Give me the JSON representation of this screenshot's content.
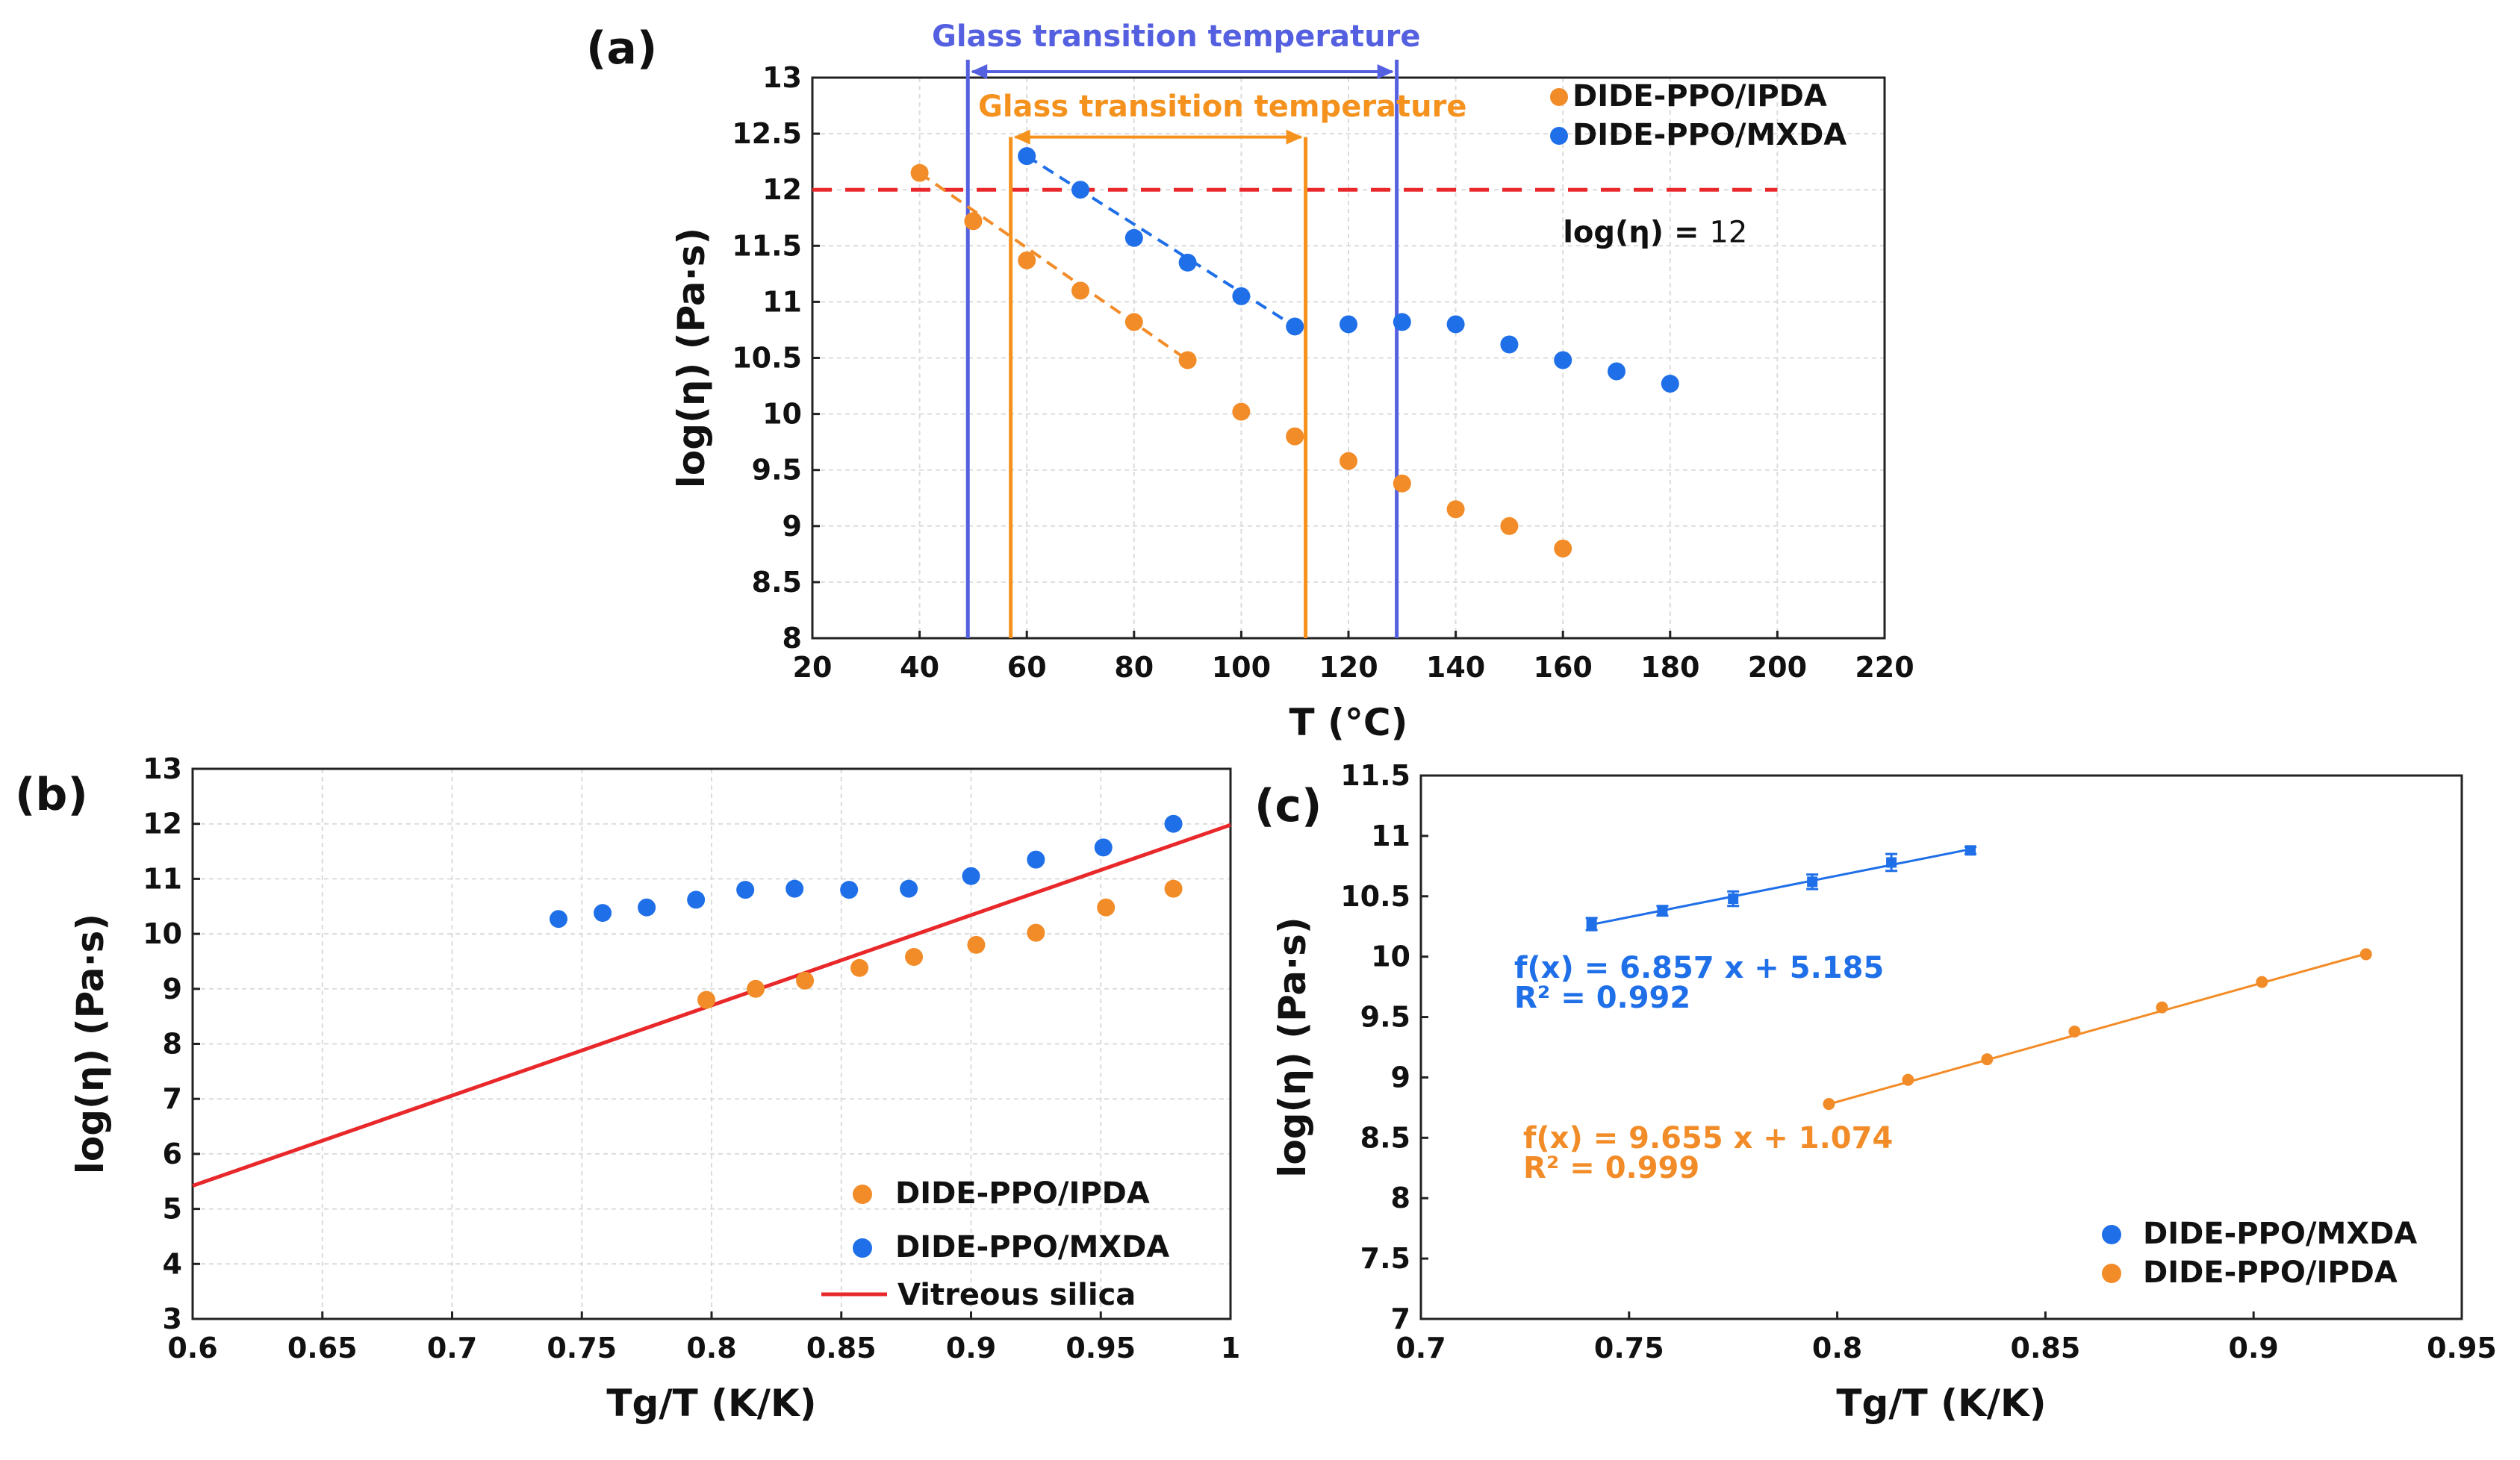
{
  "colors": {
    "orange": "#f28c28",
    "blue": "#1f6fe8",
    "red": "#e8282a",
    "tgblue": "#5560e0",
    "tgorange": "#f5921e"
  },
  "chart_data": [
    {
      "panel": "(a)",
      "type": "scatter",
      "xlabel": "T (°C)",
      "ylabel": "log(η) (Pa·s)",
      "xlim": [
        20,
        220
      ],
      "ylim": [
        8,
        13
      ],
      "xticks": [
        "20",
        "40",
        "60",
        "80",
        "100",
        "120",
        "140",
        "160",
        "180",
        "200",
        "220"
      ],
      "yticks": [
        "8",
        "8.5",
        "9",
        "9.5",
        "10",
        "10.5",
        "11",
        "11.5",
        "12",
        "12.5",
        "13"
      ],
      "grid": true,
      "legend": "top-right",
      "series": [
        {
          "name": "DIDE-PPO/IPDA",
          "color": "orange",
          "x": [
            40,
            50,
            60,
            70,
            80,
            90,
            100,
            110,
            120,
            130,
            140,
            150,
            160
          ],
          "y": [
            12.15,
            11.72,
            11.37,
            11.1,
            10.82,
            10.48,
            10.02,
            9.8,
            9.58,
            9.38,
            9.15,
            9.0,
            8.8
          ]
        },
        {
          "name": "DIDE-PPO/MXDA",
          "color": "blue",
          "x": [
            60,
            70,
            80,
            90,
            100,
            110,
            120,
            130,
            140,
            150,
            160,
            170,
            180
          ],
          "y": [
            12.3,
            12.0,
            11.57,
            11.35,
            11.05,
            10.78,
            10.8,
            10.82,
            10.8,
            10.62,
            10.48,
            10.38,
            10.27
          ]
        }
      ],
      "trend_lines": [
        {
          "series": "DIDE-PPO/IPDA",
          "x": [
            40,
            90
          ],
          "y": [
            12.15,
            10.48
          ],
          "style": "dashed"
        },
        {
          "series": "DIDE-PPO/MXDA",
          "x": [
            60,
            110
          ],
          "y": [
            12.3,
            10.78
          ],
          "style": "dashed"
        }
      ],
      "reference_line": {
        "y": 12,
        "x_range": [
          20,
          200
        ],
        "label_prefix": "log(η) =",
        "label_value": "12"
      },
      "tg_ranges": [
        {
          "label": "Glass transition temperature",
          "color": "tgblue",
          "x": [
            49,
            129
          ]
        },
        {
          "label": "Glass transition temperature",
          "color": "tgorange",
          "x": [
            57,
            112
          ]
        }
      ]
    },
    {
      "panel": "(b)",
      "type": "scatter",
      "xlabel": "Tg/T (K/K)",
      "ylabel": "log(η) (Pa·s)",
      "xlim": [
        0.6,
        1.0
      ],
      "ylim": [
        3,
        13
      ],
      "xticks": [
        "0.6",
        "0.65",
        "0.7",
        "0.75",
        "0.8",
        "0.85",
        "0.9",
        "0.95",
        "1"
      ],
      "yticks": [
        "3",
        "4",
        "5",
        "6",
        "7",
        "8",
        "9",
        "10",
        "11",
        "12",
        "13"
      ],
      "grid": true,
      "legend": "bottom-right",
      "series": [
        {
          "name": "DIDE-PPO/IPDA",
          "color": "orange",
          "x": [
            0.798,
            0.817,
            0.836,
            0.857,
            0.878,
            0.902,
            0.925,
            0.952,
            0.978
          ],
          "y": [
            8.8,
            9.0,
            9.15,
            9.38,
            9.58,
            9.8,
            10.02,
            10.48,
            10.82
          ]
        },
        {
          "name": "DIDE-PPO/MXDA",
          "color": "blue",
          "x": [
            0.741,
            0.758,
            0.775,
            0.794,
            0.813,
            0.832,
            0.853,
            0.876,
            0.9,
            0.925,
            0.951,
            0.978
          ],
          "y": [
            10.27,
            10.38,
            10.48,
            10.62,
            10.8,
            10.82,
            10.8,
            10.82,
            11.05,
            11.35,
            11.57,
            12.0
          ]
        }
      ],
      "lines": [
        {
          "name": "Vitreous silica",
          "color": "red",
          "x": [
            0.6,
            1.0
          ],
          "y": [
            5.42,
            11.98
          ]
        }
      ]
    },
    {
      "panel": "(c)",
      "type": "scatter",
      "xlabel": "Tg/T (K/K)",
      "ylabel": "log(η) (Pa·s)",
      "xlim": [
        0.7,
        0.95
      ],
      "ylim": [
        7,
        11.5
      ],
      "xticks": [
        "0.7",
        "0.75",
        "0.8",
        "0.85",
        "0.9",
        "0.95"
      ],
      "yticks": [
        "7",
        "7.5",
        "8",
        "8.5",
        "9",
        "9.5",
        "10",
        "10.5",
        "11",
        "11.5"
      ],
      "grid": false,
      "legend": "bottom-right",
      "series": [
        {
          "name": "DIDE-PPO/MXDA",
          "color": "blue",
          "x": [
            0.741,
            0.758,
            0.775,
            0.794,
            0.813,
            0.832
          ],
          "y": [
            10.27,
            10.38,
            10.48,
            10.62,
            10.78,
            10.88
          ],
          "err": [
            0.05,
            0.04,
            0.06,
            0.06,
            0.07,
            0.03
          ]
        },
        {
          "name": "DIDE-PPO/IPDA",
          "color": "orange",
          "x": [
            0.798,
            0.817,
            0.836,
            0.857,
            0.878,
            0.902,
            0.927
          ],
          "y": [
            8.78,
            8.98,
            9.15,
            9.38,
            9.58,
            9.79,
            10.02
          ]
        }
      ],
      "fits": [
        {
          "series": "DIDE-PPO/MXDA",
          "slope": 6.857,
          "intercept": 5.185,
          "x": [
            0.741,
            0.832
          ],
          "equation": "f(x) = 6.857 x + 5.185",
          "r2": "R² = 0.992"
        },
        {
          "series": "DIDE-PPO/IPDA",
          "slope": 9.655,
          "intercept": 1.074,
          "x": [
            0.798,
            0.927
          ],
          "equation": "f(x) = 9.655 x + 1.074",
          "r2": "R² = 0.999"
        }
      ]
    }
  ]
}
